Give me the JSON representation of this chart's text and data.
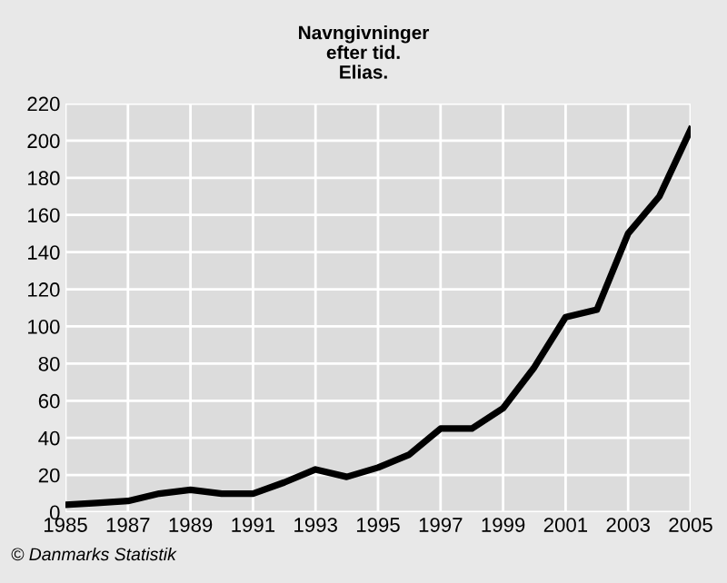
{
  "chart_data": {
    "type": "line",
    "title": "Navngivninger\nefter tid.\nElias.",
    "x": [
      1985,
      1986,
      1987,
      1988,
      1989,
      1990,
      1991,
      1992,
      1993,
      1994,
      1995,
      1996,
      1997,
      1998,
      1999,
      2000,
      2001,
      2002,
      2003,
      2004,
      2005
    ],
    "series": [
      {
        "color": "#000000",
        "values": [
          4,
          5,
          6,
          10,
          12,
          10,
          10,
          16,
          23,
          19,
          24,
          31,
          45,
          45,
          56,
          78,
          105,
          109,
          150,
          170,
          206
        ]
      }
    ],
    "xlim": [
      1985,
      2005
    ],
    "xticks": [
      1985,
      1987,
      1989,
      1991,
      1993,
      1995,
      1997,
      1999,
      2001,
      2003,
      2005
    ],
    "ylim": [
      0,
      220
    ],
    "yticks": [
      0,
      20,
      40,
      60,
      80,
      100,
      120,
      140,
      160,
      180,
      200,
      220
    ],
    "grid": true,
    "legend": false,
    "marker": "none",
    "line_style": "solid",
    "annotations": [
      "© Danmarks Statistik"
    ]
  }
}
